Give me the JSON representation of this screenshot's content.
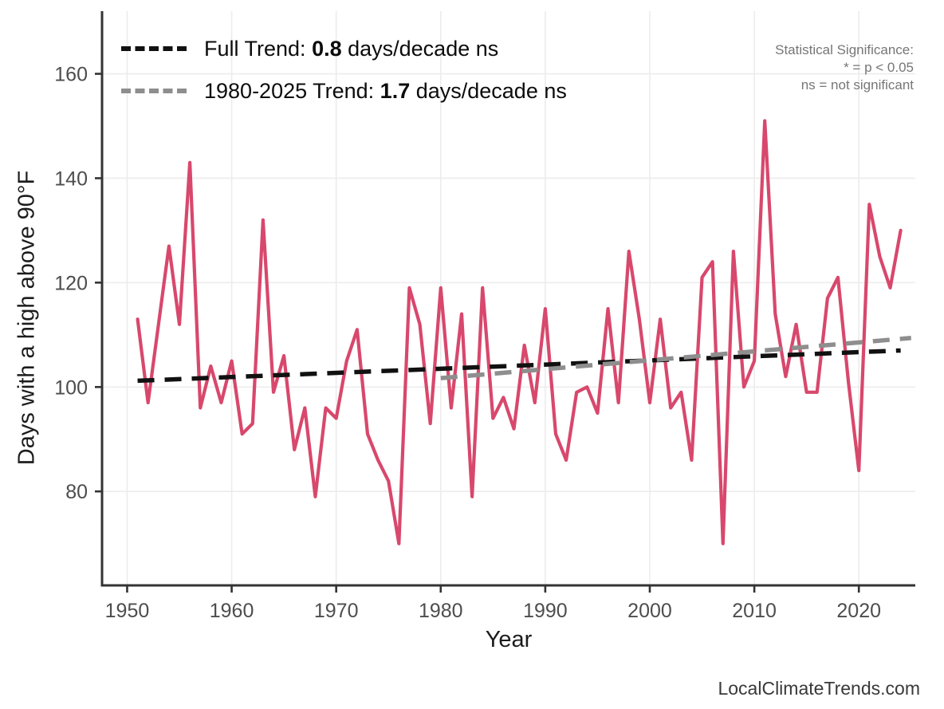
{
  "legend": {
    "items": [
      {
        "prefix": "Full Trend: ",
        "value": "0.8",
        "suffix": " days/decade ns",
        "color": "#111111"
      },
      {
        "prefix": "1980-2025 Trend: ",
        "value": "1.7",
        "suffix": " days/decade ns",
        "color": "#8e8e8e"
      }
    ]
  },
  "stat_note": {
    "line1": "Statistical Significance:",
    "line2": "* = p < 0.05",
    "line3": "ns = not significant"
  },
  "watermark": "LocalClimateTrends.com",
  "chart_data": {
    "type": "line",
    "xlabel": "Year",
    "ylabel": "Days with a high above 90°F",
    "x_ticks": [
      1950,
      1960,
      1970,
      1980,
      1990,
      2000,
      2010,
      2020
    ],
    "y_ticks": [
      80,
      100,
      120,
      140,
      160
    ],
    "xlim": [
      1947.6,
      2025.4
    ],
    "ylim": [
      62,
      172
    ],
    "grid": true,
    "colors": {
      "annual": "#d8486c",
      "full_trend": "#111111",
      "recent_trend": "#8e8e8e",
      "gridline": "#ececec",
      "axis": "#333333",
      "tick_label": "#4d4d4d"
    },
    "series": [
      {
        "name": "annual-days-above-90F",
        "type": "line",
        "start_year": 1951,
        "values": [
          113,
          97,
          112,
          127,
          112,
          143,
          96,
          104,
          97,
          105,
          91,
          93,
          132,
          99,
          106,
          88,
          96,
          79,
          96,
          94,
          105,
          111,
          91,
          86,
          82,
          70,
          119,
          112,
          93,
          119,
          96,
          114,
          79,
          119,
          94,
          98,
          92,
          108,
          97,
          115,
          91,
          86,
          99,
          100,
          95,
          115,
          97,
          126,
          113,
          97,
          113,
          96,
          99,
          86,
          121,
          124,
          70,
          126,
          100,
          105,
          151,
          114,
          102,
          112,
          99,
          99,
          117,
          121,
          101,
          84,
          135,
          125,
          119,
          130
        ]
      },
      {
        "name": "full-trend",
        "type": "trend",
        "x": [
          1951,
          2024
        ],
        "values": [
          101.2,
          107.0
        ],
        "label": "Full Trend: 0.8 days/decade ns"
      },
      {
        "name": "recent-trend",
        "type": "trend",
        "x": [
          1980,
          2025
        ],
        "values": [
          101.7,
          109.4
        ],
        "label": "1980-2025 Trend: 1.7 days/decade ns"
      }
    ]
  }
}
